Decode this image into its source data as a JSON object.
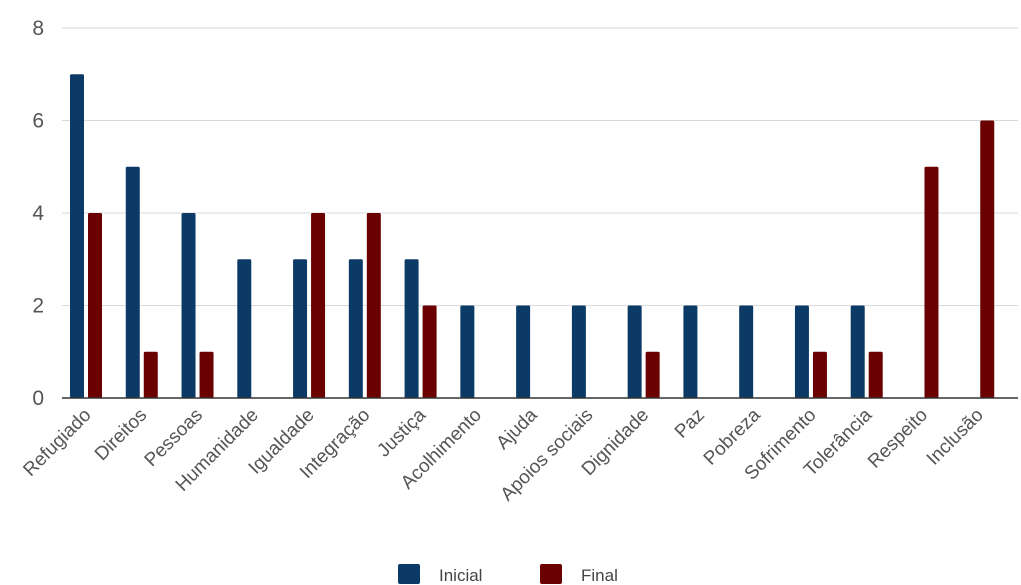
{
  "chart_data": {
    "type": "bar",
    "title": "",
    "xlabel": "",
    "ylabel": "",
    "ylim": [
      0,
      8
    ],
    "yticks": [
      0,
      2,
      4,
      6,
      8
    ],
    "grid": true,
    "legend_position": "bottom",
    "categories": [
      "Refugiado",
      "Direitos",
      "Pessoas",
      "Humanidade",
      "Igualdade",
      "Integração",
      "Justiça",
      "Acolhimento",
      "Ajuda",
      "Apoios sociais",
      "Dignidade",
      "Paz",
      "Pobreza",
      "Sofrimento",
      "Tolerância",
      "Respeito",
      "Inclusão"
    ],
    "series": [
      {
        "name": "Inicial",
        "color": "#0b3a66",
        "values": [
          7,
          5,
          4,
          3,
          3,
          3,
          3,
          2,
          2,
          2,
          2,
          2,
          2,
          2,
          2,
          0,
          0
        ]
      },
      {
        "name": "Final",
        "color": "#6b0000",
        "values": [
          4,
          1,
          1,
          0,
          4,
          4,
          2,
          0,
          0,
          0,
          1,
          0,
          0,
          1,
          1,
          5,
          6
        ]
      }
    ]
  }
}
